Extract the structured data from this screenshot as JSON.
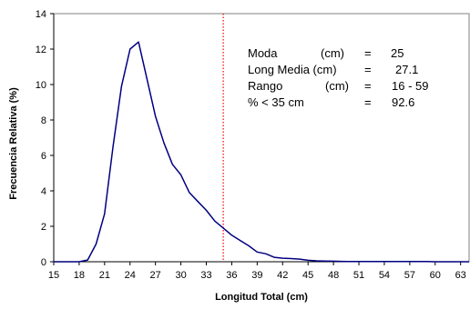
{
  "chart_data": {
    "type": "line",
    "xlabel": "Longitud Total (cm)",
    "ylabel": "Frecuencia Relativa  (%)",
    "xlim": [
      15,
      64
    ],
    "ylim": [
      0,
      14
    ],
    "x_ticks": [
      "15",
      "18",
      "21",
      "24",
      "27",
      "30",
      "33",
      "36",
      "39",
      "42",
      "45",
      "48",
      "51",
      "54",
      "57",
      "60",
      "63"
    ],
    "y_ticks": [
      "0",
      "2",
      "4",
      "6",
      "8",
      "10",
      "12",
      "14"
    ],
    "grid": false,
    "series": [
      {
        "color": "#000080",
        "x": [
          15,
          16,
          17,
          18,
          19,
          20,
          21,
          22,
          23,
          24,
          25,
          26,
          27,
          28,
          29,
          30,
          31,
          32,
          33,
          34,
          35,
          36,
          37,
          38,
          39,
          40,
          41,
          42,
          43,
          44,
          45,
          46,
          47,
          48,
          49,
          50,
          51,
          52,
          53,
          54,
          55,
          56,
          57,
          58,
          59,
          60,
          61,
          62,
          63,
          64
        ],
        "y": [
          0,
          0,
          0,
          0,
          0.1,
          1.0,
          2.7,
          6.5,
          9.9,
          12.0,
          12.4,
          10.3,
          8.2,
          6.7,
          5.5,
          4.9,
          3.9,
          3.4,
          2.9,
          2.3,
          1.9,
          1.5,
          1.2,
          0.9,
          0.55,
          0.45,
          0.25,
          0.2,
          0.18,
          0.15,
          0.08,
          0.05,
          0.04,
          0.03,
          0.02,
          0.01,
          0.01,
          0.01,
          0.01,
          0.01,
          0.01,
          0.01,
          0.01,
          0.01,
          0.01,
          0,
          0,
          0,
          0,
          0
        ]
      }
    ],
    "reference_line": {
      "x": 35,
      "color": "#ff0000",
      "style": "dotted"
    },
    "stats": [
      {
        "label": "Moda",
        "unit": "(cm)",
        "eq": "=",
        "value": "25"
      },
      {
        "label": "Long Media (cm)",
        "unit": "",
        "eq": "=",
        "value": "27.1"
      },
      {
        "label": "Rango",
        "unit": "(cm)",
        "eq": "=",
        "value": "16 - 59"
      },
      {
        "label": "% < 35 cm",
        "unit": "",
        "eq": "=",
        "value": "92.6"
      }
    ]
  }
}
